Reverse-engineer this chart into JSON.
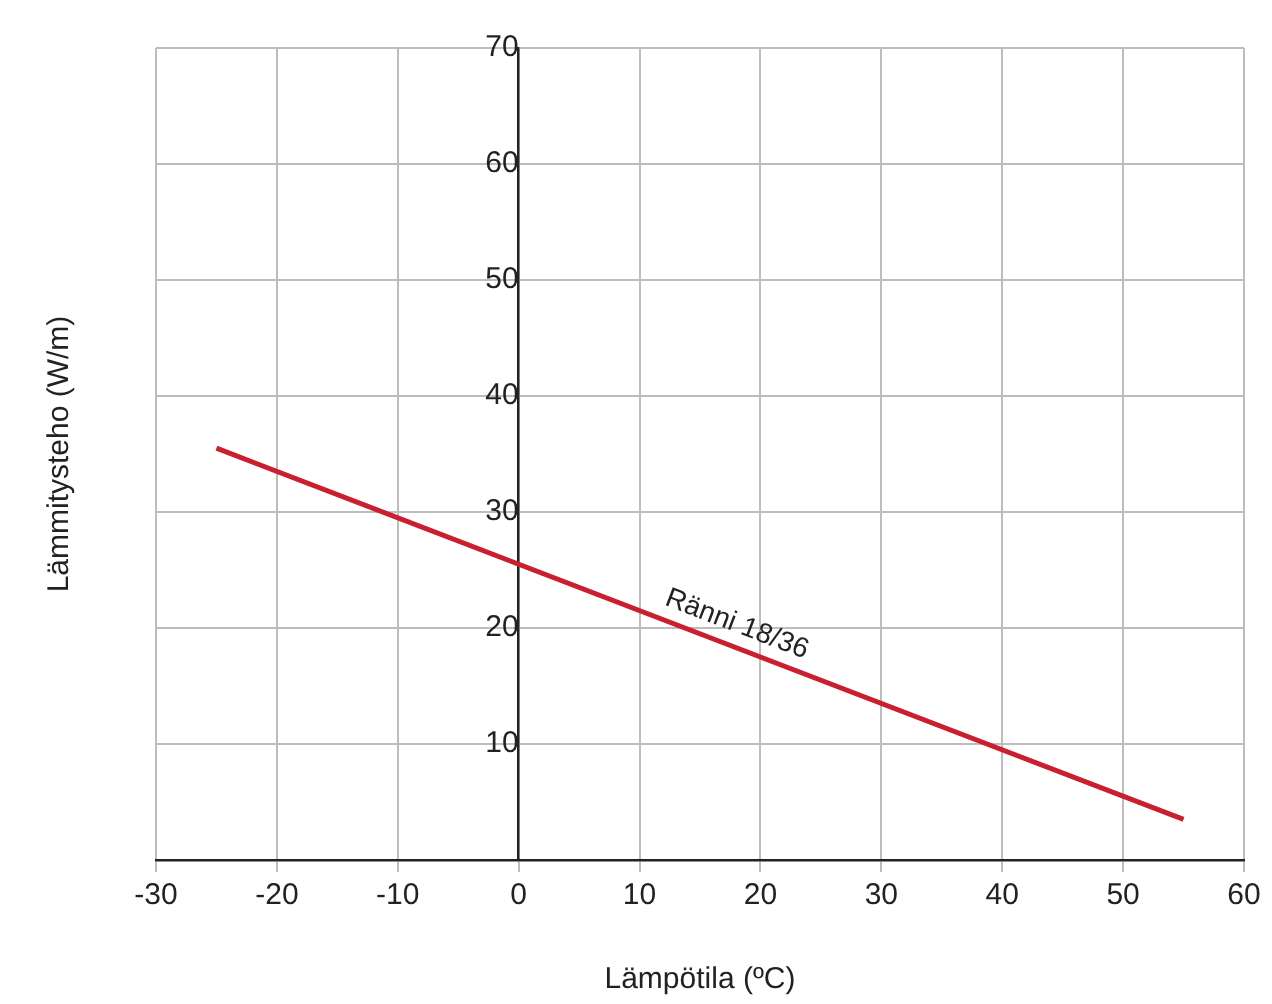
{
  "chart_data": {
    "type": "line",
    "xlabel": "Lämpötila (ºC)",
    "ylabel": "Lämmitysteho (W/m)",
    "series": [
      {
        "name": "Ränni 18/36",
        "color": "#c8202f",
        "x": [
          -25,
          55
        ],
        "values": [
          35.5,
          3.5
        ]
      }
    ],
    "xlim": [
      -30,
      60
    ],
    "xticks": [
      -30,
      -20,
      -10,
      0,
      10,
      20,
      30,
      40,
      50,
      60
    ],
    "ylim": [
      0,
      70
    ],
    "yticks": [
      10,
      20,
      30,
      40,
      50,
      60,
      70
    ],
    "grid": true,
    "legend": false,
    "marker": "none",
    "line_style": "solid"
  }
}
